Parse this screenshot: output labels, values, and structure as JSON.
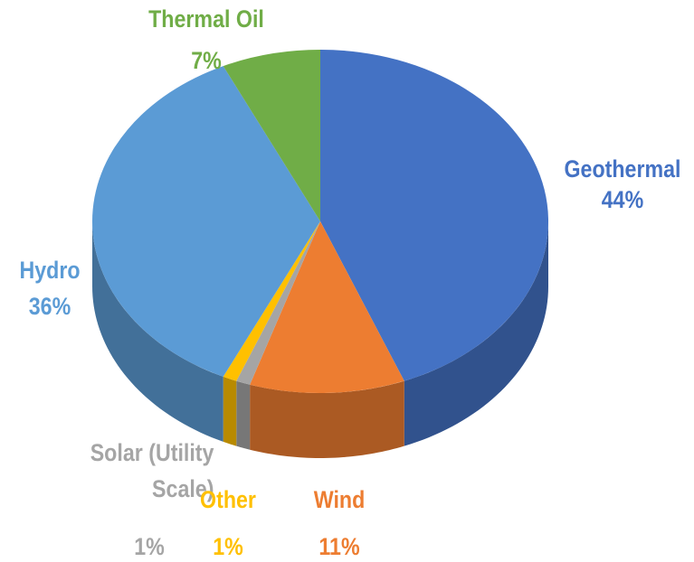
{
  "chart_data": {
    "type": "pie",
    "style": "3d",
    "legend": "none",
    "slices": [
      {
        "name": "Geothermal",
        "value": 44,
        "label": "44%",
        "color": "#4472C4"
      },
      {
        "name": "Wind",
        "value": 11,
        "label": "11%",
        "color": "#ED7D31"
      },
      {
        "name": "Solar (Utility Scale)",
        "name_line1": "Solar (Utility",
        "name_line2": "Scale)",
        "value": 1,
        "label": "1%",
        "color": "#A5A5A5"
      },
      {
        "name": "Other",
        "value": 1,
        "label": "1%",
        "color": "#FFC000"
      },
      {
        "name": "Hydro",
        "value": 36,
        "label": "36%",
        "color": "#5B9BD5"
      },
      {
        "name": "Thermal Oil",
        "value": 7,
        "label": "7%",
        "color": "#70AD47"
      }
    ]
  }
}
